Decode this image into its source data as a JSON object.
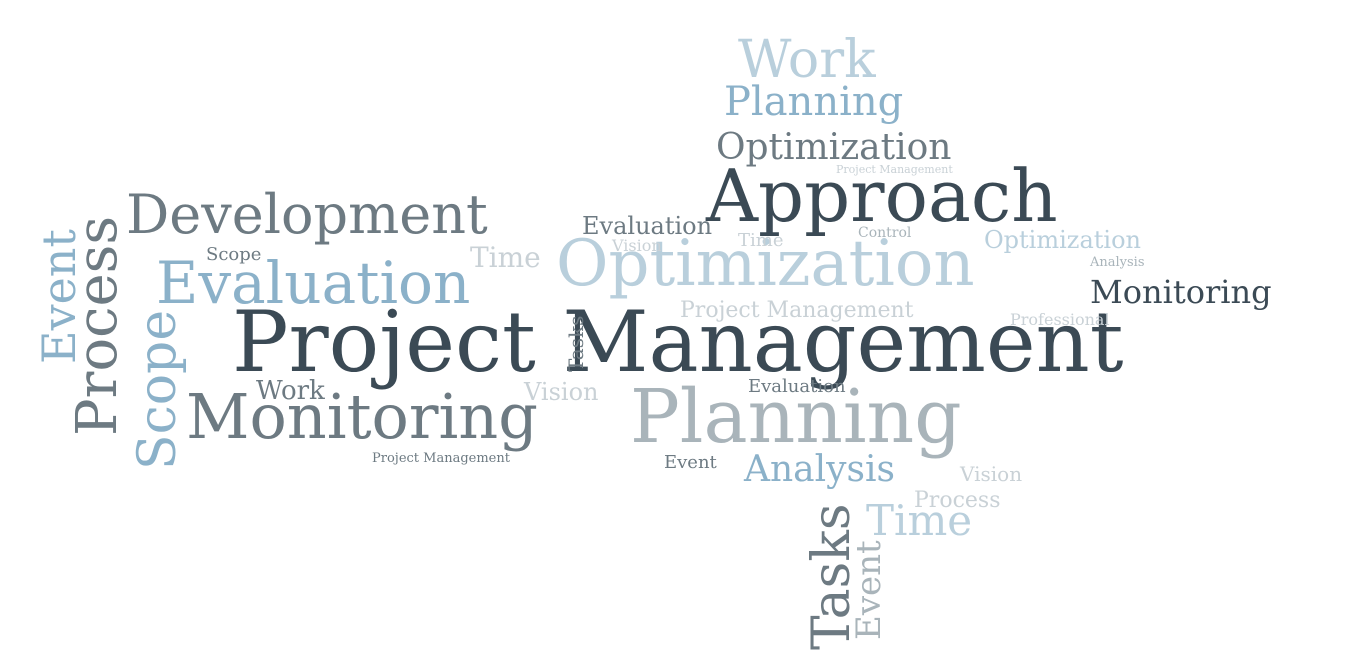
{
  "colors": {
    "dark": "#3b4a55",
    "mid": "#6d7a82",
    "light": "#a9b4ba",
    "blue": "#8bb1c9",
    "paleblue": "#b9cfdc",
    "faint": "#c9d1d6",
    "background": "#ffffff"
  },
  "words": {
    "project_management": "Project Management",
    "approach": "Approach",
    "development": "Development",
    "optimization_main": "Optimization",
    "optimization_top": "Optimization",
    "optimization_small": "Optimization",
    "evaluation_big": "Evaluation",
    "evaluation_small": "Evaluation",
    "evaluation_mini": "Evaluation",
    "monitoring_big": "Monitoring",
    "monitoring_right": "Monitoring",
    "planning_big": "Planning",
    "planning_top": "Planning",
    "work_top": "Work",
    "work_small": "Work",
    "process_vertical": "Process",
    "process_small": "Process",
    "event_vertical": "Event",
    "event_small": "Event",
    "event_bottom": "Event",
    "scope_vertical": "Scope",
    "scope_small": "Scope",
    "tasks_vertical": "Tasks",
    "tasks_small": "Tasks",
    "time_big": "Time",
    "time_small": "Time",
    "time_tiny": "Time",
    "analysis_big": "Analysis",
    "analysis_small": "Analysis",
    "vision_small": "Vision",
    "vision_bottom": "Vision",
    "vision_tiny": "Vision",
    "control": "Control",
    "professional": "Professional",
    "project_management_mid": "Project Management",
    "project_management_small": "Project Management",
    "project_management_tiny": "Project Management"
  }
}
